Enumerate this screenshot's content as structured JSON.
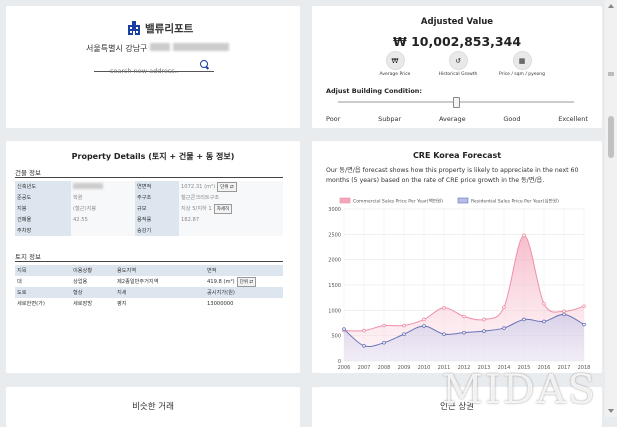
{
  "search_card": {
    "logo_text": "밸류리포트",
    "address": "서울특별시 강남구",
    "search_placeholder": "search new address.."
  },
  "valuation": {
    "title": "Adjusted Value",
    "amount": "₩ 10,002,853,344",
    "buttons": [
      {
        "label": "Average Price",
        "icon": "won-icon"
      },
      {
        "label": "Historical Growth",
        "icon": "history-icon"
      },
      {
        "label": "Price / sqm / pyeong",
        "icon": "grid-icon"
      }
    ],
    "adjust_label": "Adjust Building Condition:",
    "condition_level": 0.5,
    "conditions": [
      "Poor",
      "Subpar",
      "Average",
      "Good",
      "Excellent"
    ]
  },
  "property": {
    "title": "Property Details (토지 + 건물 + 동 정보)",
    "building_section": "건물 정보",
    "building_rows": [
      [
        "신축년도",
        "",
        "연면적",
        "1072.31 (m²)"
      ],
      [
        "준공도",
        "학원",
        "주구조",
        "철근콘크리트구조"
      ],
      [
        "지붕",
        "(철근)지붕",
        "규모",
        "지상 5/지하 1"
      ],
      [
        "건폐율",
        "42.55",
        "용적률",
        "182.87"
      ],
      [
        "주차장",
        "",
        "승강기",
        ""
      ]
    ],
    "unit_btn": "단위 ⇄",
    "detail_btn": "자세히",
    "land_section": "토지 정보",
    "land_rows": [
      [
        "지목",
        "이용상황",
        "용도지역",
        "면적"
      ],
      [
        "대",
        "상업용",
        "제2종일반주거지역",
        "419.8 (m²)"
      ],
      [
        "도로",
        "형상",
        "지세",
        "공시지가(원)"
      ],
      [
        "세로한면(가)",
        "세로장방",
        "평지",
        "13000000"
      ]
    ]
  },
  "cre": {
    "title": "CRE Korea Forecast",
    "description": "Our 동/면/읍 forecast shows how this property is likely to appreciate in the next 60 months (5 years) based on the rate of CRE price growth in the 동/면/읍."
  },
  "chart_data": {
    "type": "area",
    "x": [
      2006,
      2007,
      2008,
      2009,
      2010,
      2011,
      2012,
      2013,
      2014,
      2015,
      2016,
      2017,
      2018
    ],
    "ylim": [
      0,
      3000
    ],
    "yticks": [
      0,
      500,
      1000,
      1500,
      2000,
      2500,
      3000
    ],
    "grid": true,
    "legend_position": "top",
    "series": [
      {
        "name": "Commercial Sales Price Per Year(백만원)",
        "color": "#f0a0b4",
        "values": [
          600,
          600,
          700,
          700,
          820,
          1050,
          880,
          820,
          1060,
          2480,
          1130,
          980,
          1080
        ]
      },
      {
        "name": "Residential Sales Price Per Year(십만원)",
        "color": "#8d96c9",
        "values": [
          630,
          300,
          360,
          530,
          690,
          530,
          560,
          590,
          650,
          820,
          780,
          920,
          720
        ]
      }
    ]
  },
  "bottom": {
    "similar_title": "비슷한 거래",
    "nearby_title": "인근 상권"
  },
  "watermark": "MIDAS"
}
